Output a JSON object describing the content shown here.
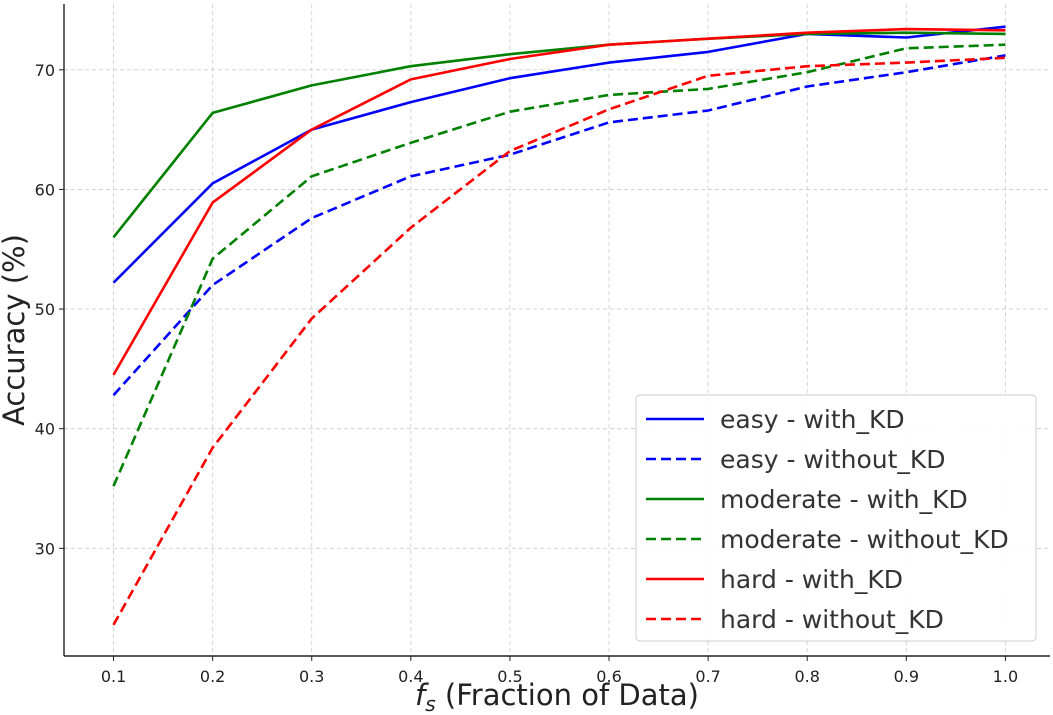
{
  "chart_data": {
    "type": "line",
    "title": "",
    "xlabel_symbol": "f",
    "xlabel_subscript": "s",
    "xlabel_rest": " (Fraction of Data)",
    "ylabel": "Accuracy (%)",
    "xlim": [
      0.05,
      1.045
    ],
    "ylim": [
      21,
      75.5
    ],
    "xticks": [
      0.1,
      0.2,
      0.3,
      0.4,
      0.5,
      0.6,
      0.7,
      0.8,
      0.9,
      1.0
    ],
    "xtick_labels": [
      "0.1",
      "0.2",
      "0.3",
      "0.4",
      "0.5",
      "0.6",
      "0.7",
      "0.8",
      "0.9",
      "1.0"
    ],
    "yticks": [
      30,
      40,
      50,
      60,
      70
    ],
    "ytick_labels": [
      "30",
      "40",
      "50",
      "60",
      "70"
    ],
    "grid": true,
    "legend_position": "lower-right",
    "x": [
      0.1,
      0.2,
      0.3,
      0.4,
      0.5,
      0.6,
      0.7,
      0.8,
      0.9,
      1.0
    ],
    "series": [
      {
        "name": "easy - with_KD",
        "color": "#0000ff",
        "dashed": false,
        "values": [
          52.2,
          60.5,
          65.0,
          67.3,
          69.3,
          70.6,
          71.5,
          73.0,
          72.7,
          73.6
        ]
      },
      {
        "name": "easy - without_KD",
        "color": "#0000ff",
        "dashed": true,
        "values": [
          42.8,
          52.0,
          57.6,
          61.1,
          62.9,
          65.6,
          66.6,
          68.6,
          69.8,
          71.2
        ]
      },
      {
        "name": "moderate - with_KD",
        "color": "#008000",
        "dashed": false,
        "values": [
          56.0,
          66.4,
          68.7,
          70.3,
          71.3,
          72.1,
          72.6,
          73.0,
          73.1,
          73.0
        ]
      },
      {
        "name": "moderate - without_KD",
        "color": "#008000",
        "dashed": true,
        "values": [
          35.2,
          54.2,
          61.1,
          63.9,
          66.5,
          67.9,
          68.4,
          69.8,
          71.8,
          72.1
        ]
      },
      {
        "name": "hard - with_KD",
        "color": "#ff0000",
        "dashed": false,
        "values": [
          44.5,
          58.9,
          65.0,
          69.2,
          70.9,
          72.1,
          72.6,
          73.1,
          73.4,
          73.3
        ]
      },
      {
        "name": "hard - without_KD",
        "color": "#ff0000",
        "dashed": true,
        "values": [
          23.6,
          38.4,
          49.2,
          56.8,
          63.2,
          66.7,
          69.5,
          70.3,
          70.6,
          71.0
        ]
      }
    ]
  }
}
